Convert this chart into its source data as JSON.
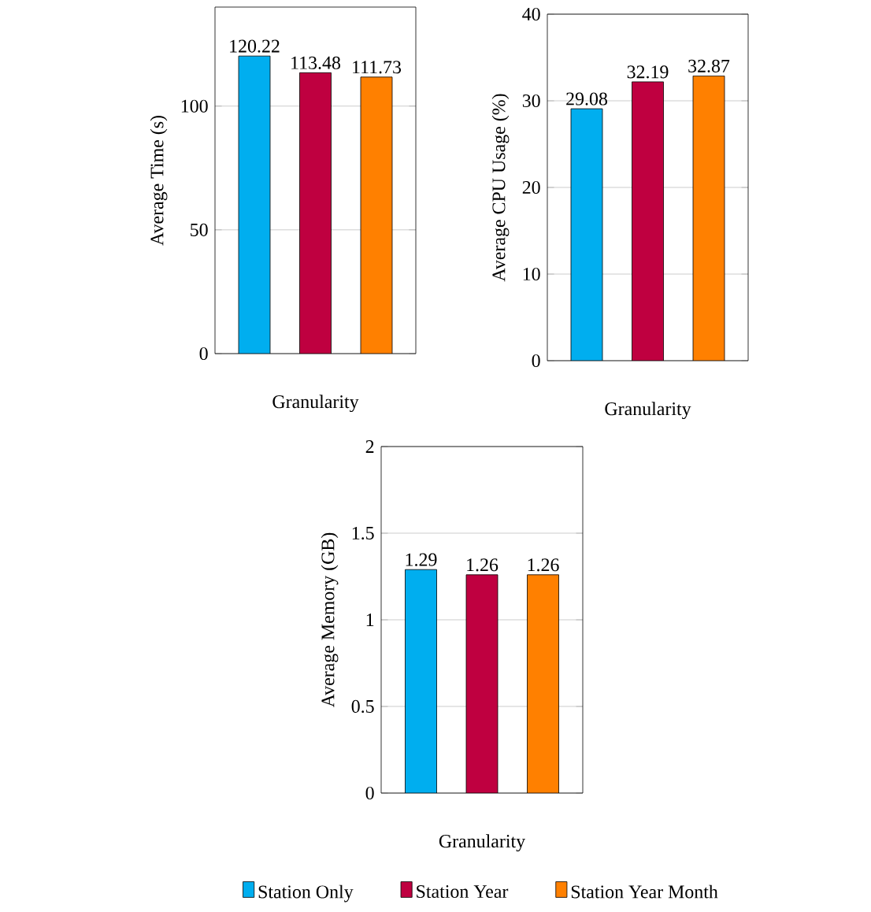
{
  "chart_data": [
    {
      "type": "bar",
      "xlabel": "Granularity",
      "ylabel": "Average Time (s)",
      "categories": [
        null
      ],
      "ylim": [
        0,
        140
      ],
      "yticks": [
        0,
        50,
        100
      ],
      "grid": "y",
      "data_labels": true,
      "legend": false,
      "series": [
        {
          "color": "#00aeef",
          "values": [
            120.22
          ]
        },
        {
          "color": "#bf0040",
          "values": [
            113.48
          ]
        },
        {
          "color": "#ff8000",
          "values": [
            111.73
          ]
        }
      ]
    },
    {
      "type": "bar",
      "xlabel": "Granularity",
      "ylabel": "Average CPU Usage (%)",
      "categories": [
        null
      ],
      "ylim": [
        0,
        40
      ],
      "yticks": [
        0,
        10,
        20,
        30,
        40
      ],
      "grid": "y",
      "data_labels": true,
      "legend": false,
      "series": [
        {
          "color": "#00aeef",
          "values": [
            29.08
          ]
        },
        {
          "color": "#bf0040",
          "values": [
            32.19
          ]
        },
        {
          "color": "#ff8000",
          "values": [
            32.87
          ]
        }
      ]
    },
    {
      "type": "bar",
      "xlabel": "Granularity",
      "ylabel": "Average Memory (GB)",
      "categories": [
        null
      ],
      "ylim": [
        0,
        2
      ],
      "yticks": [
        0,
        0.5,
        1,
        1.5,
        2
      ],
      "grid": "y",
      "data_labels": true,
      "legend": "bottom",
      "series": [
        {
          "name": "Station Only",
          "color": "#00aeef",
          "values": [
            1.29
          ]
        },
        {
          "name": "Station Year",
          "color": "#bf0040",
          "values": [
            1.26
          ]
        },
        {
          "name": "Station Year Month",
          "color": "#ff8000",
          "values": [
            1.26
          ]
        }
      ]
    }
  ]
}
